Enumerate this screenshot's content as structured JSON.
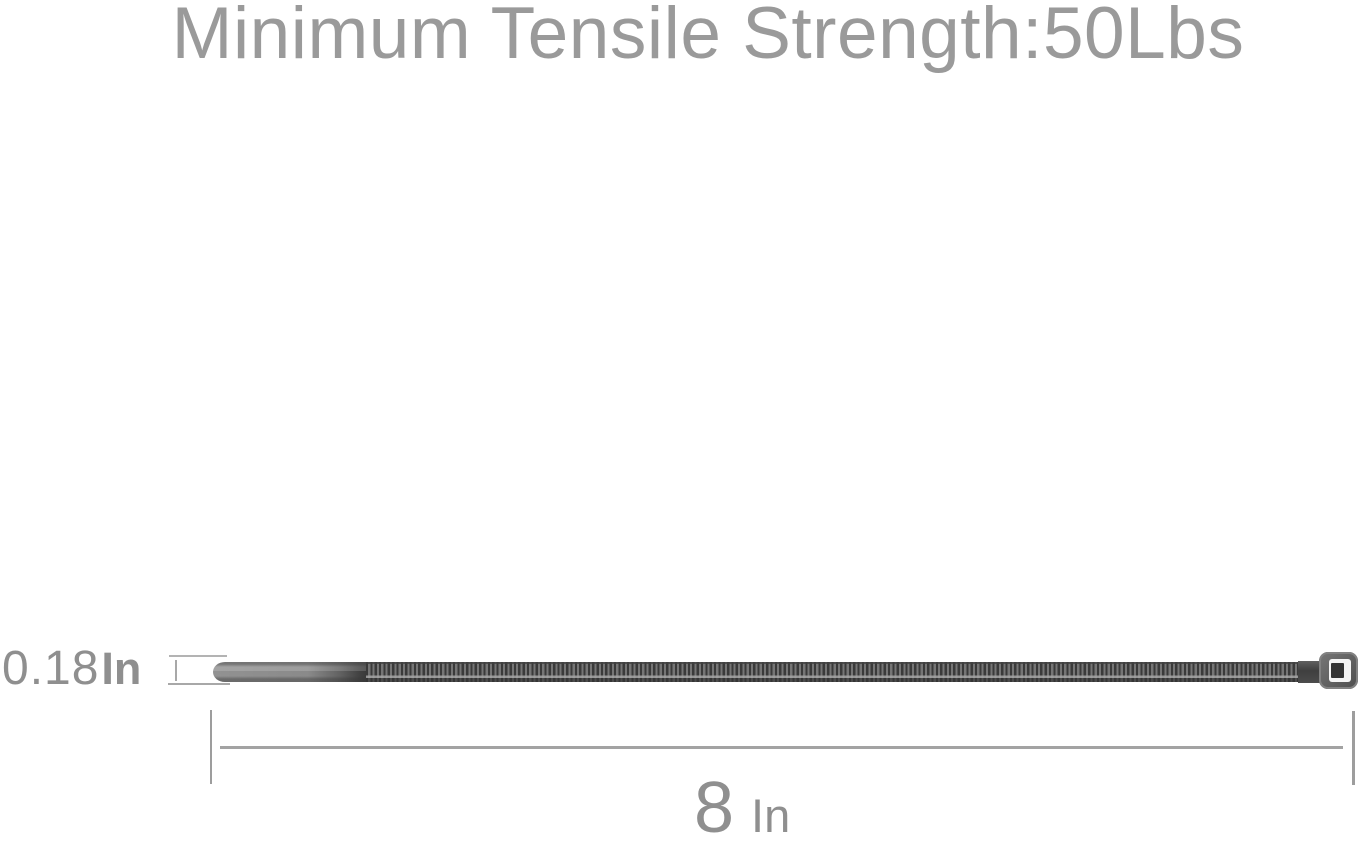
{
  "title": "Minimum Tensile Strength:50Lbs",
  "width_label": {
    "value": "0.18",
    "unit": "In"
  },
  "length_label": {
    "value": "8",
    "unit": "In"
  },
  "colors": {
    "title_gray": "#9a9a9a",
    "label_gray": "#8f8f8f",
    "dimension_line_gray": "#a3a3a3",
    "tie_light_gray": "#8e8e8e",
    "tie_dark_gray": "#3a3a3a",
    "tie_head_gray": "#5c5c5c",
    "tie_slot_white": "#f4f4f4",
    "background": "#ffffff"
  }
}
